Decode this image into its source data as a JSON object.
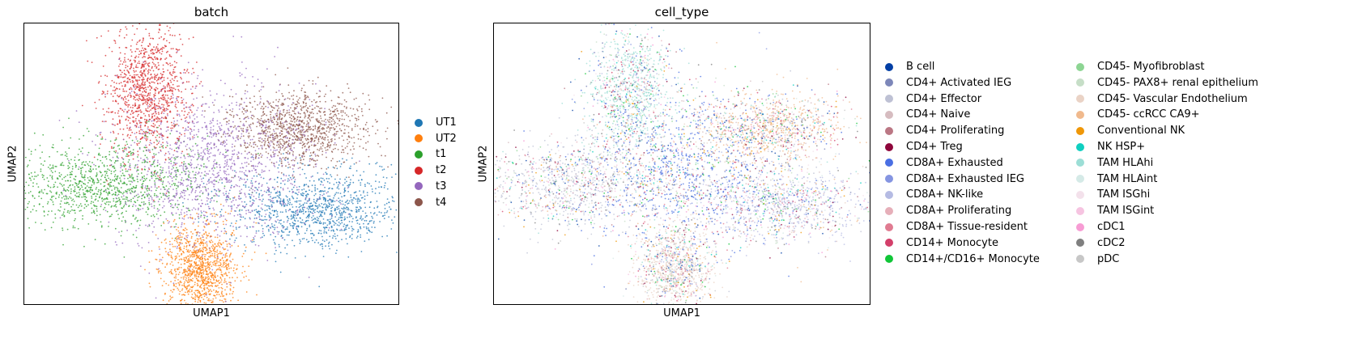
{
  "chart_data": [
    {
      "type": "scatter",
      "title": "batch",
      "xlabel": "UMAP1",
      "ylabel": "UMAP2",
      "legend_placement": "right",
      "grid": false,
      "categories": [
        {
          "name": "UT1",
          "color": "#1f77b4"
        },
        {
          "name": "UT2",
          "color": "#ff7f0e"
        },
        {
          "name": "t1",
          "color": "#2ca02c"
        },
        {
          "name": "t2",
          "color": "#d62728"
        },
        {
          "name": "t3",
          "color": "#9467bd"
        },
        {
          "name": "t4",
          "color": "#8c564b"
        }
      ],
      "clusters": [
        {
          "category": "t2",
          "x": 0.33,
          "y": 0.76,
          "spread_x": 0.055,
          "spread_y": 0.115
        },
        {
          "category": "t4",
          "x": 0.73,
          "y": 0.63,
          "spread_x": 0.095,
          "spread_y": 0.065
        },
        {
          "category": "t1",
          "x": 0.21,
          "y": 0.43,
          "spread_x": 0.135,
          "spread_y": 0.075
        },
        {
          "category": "UT1",
          "x": 0.78,
          "y": 0.34,
          "spread_x": 0.115,
          "spread_y": 0.07
        },
        {
          "category": "UT2",
          "x": 0.47,
          "y": 0.13,
          "spread_x": 0.05,
          "spread_y": 0.08
        },
        {
          "category": "t3",
          "x": 0.5,
          "y": 0.49,
          "spread_x": 0.13,
          "spread_y": 0.14
        }
      ]
    },
    {
      "type": "scatter",
      "title": "cell_type",
      "xlabel": "UMAP1",
      "ylabel": "UMAP2",
      "legend_placement": "right",
      "grid": false,
      "categories": [
        {
          "name": "B cell",
          "color": "#023fa5"
        },
        {
          "name": "CD4+ Activated IEG",
          "color": "#7d87b9"
        },
        {
          "name": "CD4+ Effector",
          "color": "#bec1d4"
        },
        {
          "name": "CD4+ Naive",
          "color": "#d6bcc0"
        },
        {
          "name": "CD4+ Proliferating",
          "color": "#bb7784"
        },
        {
          "name": "CD4+ Treg",
          "color": "#8e063b"
        },
        {
          "name": "CD8A+ Exhausted",
          "color": "#4a6fe3"
        },
        {
          "name": "CD8A+ Exhausted IEG",
          "color": "#8595e1"
        },
        {
          "name": "CD8A+ NK-like",
          "color": "#b5bbe3"
        },
        {
          "name": "CD8A+ Proliferating",
          "color": "#e6afb9"
        },
        {
          "name": "CD8A+ Tissue-resident",
          "color": "#e07b91"
        },
        {
          "name": "CD14+ Monocyte",
          "color": "#d33f6a"
        },
        {
          "name": "CD14+/CD16+ Monocyte",
          "color": "#11c638"
        },
        {
          "name": "CD45- Myofibroblast",
          "color": "#8dd593"
        },
        {
          "name": "CD45- PAX8+ renal epithelium",
          "color": "#c6dec7"
        },
        {
          "name": "CD45- Vascular Endothelium",
          "color": "#ead3c6"
        },
        {
          "name": "CD45- ccRCC CA9+",
          "color": "#f0b98d"
        },
        {
          "name": "Conventional NK",
          "color": "#ef9708"
        },
        {
          "name": "NK HSP+",
          "color": "#0fcfc0"
        },
        {
          "name": "TAM HLAhi",
          "color": "#9cded6"
        },
        {
          "name": "TAM HLAint",
          "color": "#d5eae7"
        },
        {
          "name": "TAM ISGhi",
          "color": "#f3e1eb"
        },
        {
          "name": "TAM ISGint",
          "color": "#f6c4e1"
        },
        {
          "name": "cDC1",
          "color": "#f79cd4"
        },
        {
          "name": "cDC2",
          "color": "#7f7f7f"
        },
        {
          "name": "pDC",
          "color": "#c7c7c7"
        }
      ],
      "clusters": [
        {
          "category": "TAM HLAhi",
          "x": 0.36,
          "y": 0.76,
          "spread_x": 0.055,
          "spread_y": 0.115
        },
        {
          "category": "CD45- ccRCC CA9+",
          "x": 0.73,
          "y": 0.63,
          "spread_x": 0.095,
          "spread_y": 0.065
        },
        {
          "category": "CD4+ Effector",
          "x": 0.2,
          "y": 0.43,
          "spread_x": 0.135,
          "spread_y": 0.075
        },
        {
          "category": "CD8A+ NK-like",
          "x": 0.77,
          "y": 0.36,
          "spread_x": 0.115,
          "spread_y": 0.07
        },
        {
          "category": "CD45- Vascular Endothelium",
          "x": 0.48,
          "y": 0.13,
          "spread_x": 0.05,
          "spread_y": 0.08
        },
        {
          "category": "CD8A+ Exhausted",
          "x": 0.5,
          "y": 0.49,
          "spread_x": 0.13,
          "spread_y": 0.14
        }
      ]
    }
  ]
}
